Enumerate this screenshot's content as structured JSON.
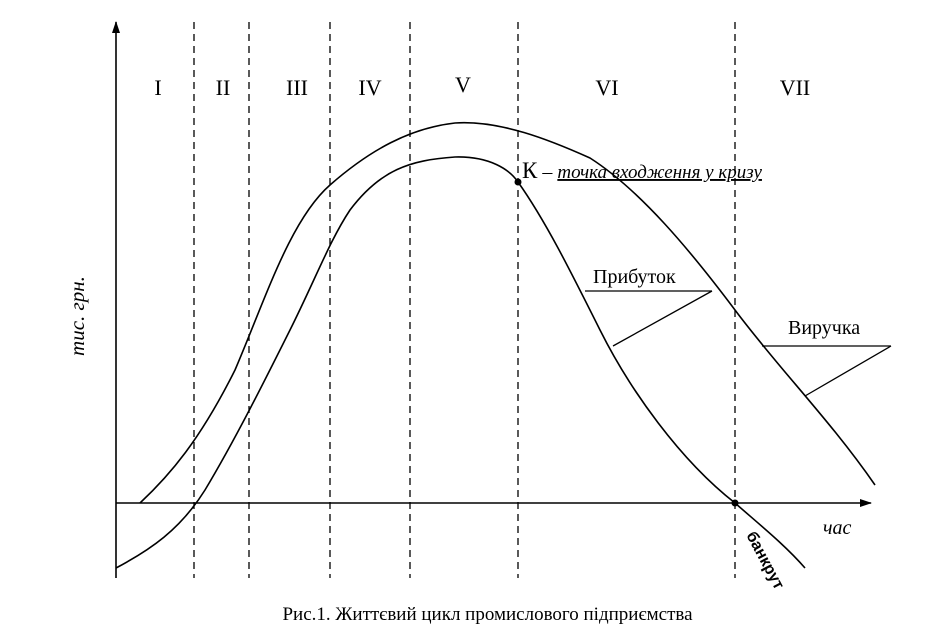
{
  "stages": [
    "I",
    "II",
    "III",
    "IV",
    "V",
    "VI",
    "VII"
  ],
  "y_axis_label": "тис. грн.",
  "x_axis_label": "час",
  "point_k": {
    "letter": "К",
    "dash": " – ",
    "description": "точка входження у кризу"
  },
  "profit_label": "Прибуток",
  "revenue_label": "Виручка",
  "bankrupt_label": "банкрут",
  "caption": "Рис.1. Життєвий цикл промислового підприємства",
  "colors": {
    "ink": "#000000",
    "background": "#ffffff"
  }
}
